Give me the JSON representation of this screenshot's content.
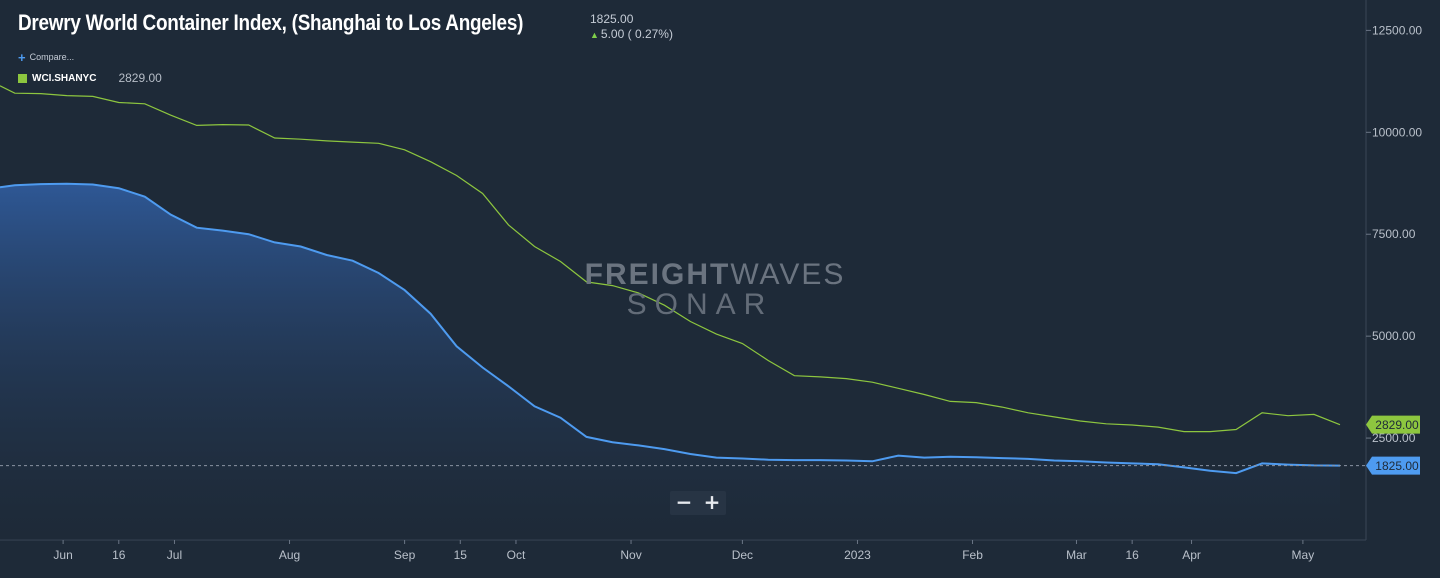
{
  "header": {
    "title": "Drewry World Container Index, (Shanghai to Los Angeles)",
    "last_value": "1825.00",
    "change": "5.00 ( 0.27%)"
  },
  "compare_label": "Compare...",
  "legend": {
    "symbol": "WCI.SHANYC",
    "value": "2829.00",
    "color": "#8dc63f"
  },
  "watermark": {
    "line1_bold": "FREIGHT",
    "line1_thin": "WAVES",
    "line2": "SONAR"
  },
  "zoom": {
    "minus": "−",
    "plus": "+"
  },
  "colors": {
    "background": "#1e2a38",
    "primary": "#4e9bf0",
    "compare": "#8dc63f",
    "label_text": "#1e2a38"
  },
  "chart_data": {
    "type": "line",
    "xlabel": "",
    "ylabel": "",
    "ylim": [
      0,
      13000
    ],
    "y_ticks": [
      2500,
      5000,
      7500,
      10000,
      12500
    ],
    "y_tick_labels": [
      "2500.00",
      "5000.00",
      "7500.00",
      "10000.00",
      "12500.00"
    ],
    "x_ticks": [
      {
        "date": "2022-06-01",
        "label": "Jun"
      },
      {
        "date": "2022-06-16",
        "label": "16"
      },
      {
        "date": "2022-07-01",
        "label": "Jul"
      },
      {
        "date": "2022-08-01",
        "label": "Aug"
      },
      {
        "date": "2022-09-01",
        "label": "Sep"
      },
      {
        "date": "2022-09-16",
        "label": "15"
      },
      {
        "date": "2022-10-01",
        "label": "Oct"
      },
      {
        "date": "2022-11-01",
        "label": "Nov"
      },
      {
        "date": "2022-12-01",
        "label": "Dec"
      },
      {
        "date": "2023-01-01",
        "label": "2023"
      },
      {
        "date": "2023-02-01",
        "label": "Feb"
      },
      {
        "date": "2023-03-01",
        "label": "Mar"
      },
      {
        "date": "2023-03-16",
        "label": "16"
      },
      {
        "date": "2023-04-01",
        "label": "Apr"
      },
      {
        "date": "2023-05-01",
        "label": "May"
      }
    ],
    "x_range": [
      "2022-05-15",
      "2023-05-18"
    ],
    "series": [
      {
        "name": "",
        "area": true,
        "last_label": "1825.00",
        "x": [
          "2022-05-15",
          "2022-05-19",
          "2022-05-26",
          "2022-06-02",
          "2022-06-09",
          "2022-06-16",
          "2022-06-23",
          "2022-06-30",
          "2022-07-07",
          "2022-07-14",
          "2022-07-21",
          "2022-07-28",
          "2022-08-04",
          "2022-08-11",
          "2022-08-18",
          "2022-08-25",
          "2022-09-01",
          "2022-09-08",
          "2022-09-15",
          "2022-09-22",
          "2022-09-29",
          "2022-10-06",
          "2022-10-13",
          "2022-10-20",
          "2022-10-27",
          "2022-11-03",
          "2022-11-10",
          "2022-11-17",
          "2022-11-24",
          "2022-12-01",
          "2022-12-08",
          "2022-12-15",
          "2022-12-22",
          "2022-12-29",
          "2023-01-05",
          "2023-01-12",
          "2023-01-19",
          "2023-01-26",
          "2023-02-02",
          "2023-02-09",
          "2023-02-16",
          "2023-02-23",
          "2023-03-02",
          "2023-03-09",
          "2023-03-16",
          "2023-03-23",
          "2023-03-30",
          "2023-04-06",
          "2023-04-13",
          "2023-04-20",
          "2023-04-27",
          "2023-05-04",
          "2023-05-11"
        ],
        "values": [
          8650,
          8700,
          8730,
          8740,
          8720,
          8630,
          8420,
          7980,
          7660,
          7590,
          7500,
          7300,
          7200,
          6990,
          6850,
          6550,
          6130,
          5550,
          4750,
          4230,
          3770,
          3280,
          3000,
          2530,
          2400,
          2320,
          2230,
          2110,
          2020,
          2000,
          1970,
          1960,
          1960,
          1950,
          1930,
          2070,
          2020,
          2040,
          2030,
          2010,
          1990,
          1950,
          1930,
          1900,
          1880,
          1860,
          1780,
          1700,
          1640,
          1880,
          1850,
          1830,
          1825
        ]
      },
      {
        "name": "WCI.SHANYC",
        "area": false,
        "last_label": "2829.00",
        "x": [
          "2022-05-15",
          "2022-05-19",
          "2022-05-26",
          "2022-06-02",
          "2022-06-09",
          "2022-06-16",
          "2022-06-23",
          "2022-06-30",
          "2022-07-07",
          "2022-07-14",
          "2022-07-21",
          "2022-07-28",
          "2022-08-04",
          "2022-08-11",
          "2022-08-18",
          "2022-08-25",
          "2022-09-01",
          "2022-09-08",
          "2022-09-15",
          "2022-09-22",
          "2022-09-29",
          "2022-10-06",
          "2022-10-13",
          "2022-10-20",
          "2022-10-27",
          "2022-11-03",
          "2022-11-10",
          "2022-11-17",
          "2022-11-24",
          "2022-12-01",
          "2022-12-08",
          "2022-12-15",
          "2022-12-22",
          "2022-12-29",
          "2023-01-05",
          "2023-01-12",
          "2023-01-19",
          "2023-01-26",
          "2023-02-02",
          "2023-02-09",
          "2023-02-16",
          "2023-02-23",
          "2023-03-02",
          "2023-03-09",
          "2023-03-16",
          "2023-03-23",
          "2023-03-30",
          "2023-04-06",
          "2023-04-13",
          "2023-04-20",
          "2023-04-27",
          "2023-05-04",
          "2023-05-11"
        ],
        "values": [
          11140,
          10960,
          10950,
          10900,
          10880,
          10730,
          10700,
          10420,
          10170,
          10190,
          10180,
          9860,
          9830,
          9790,
          9760,
          9730,
          9570,
          9280,
          8940,
          8500,
          7730,
          7200,
          6830,
          6330,
          6240,
          6060,
          5760,
          5360,
          5050,
          4820,
          4400,
          4030,
          4000,
          3960,
          3870,
          3720,
          3570,
          3400,
          3370,
          3260,
          3120,
          3020,
          2920,
          2850,
          2820,
          2770,
          2660,
          2660,
          2710,
          3120,
          3050,
          3080,
          2829
        ]
      }
    ]
  }
}
